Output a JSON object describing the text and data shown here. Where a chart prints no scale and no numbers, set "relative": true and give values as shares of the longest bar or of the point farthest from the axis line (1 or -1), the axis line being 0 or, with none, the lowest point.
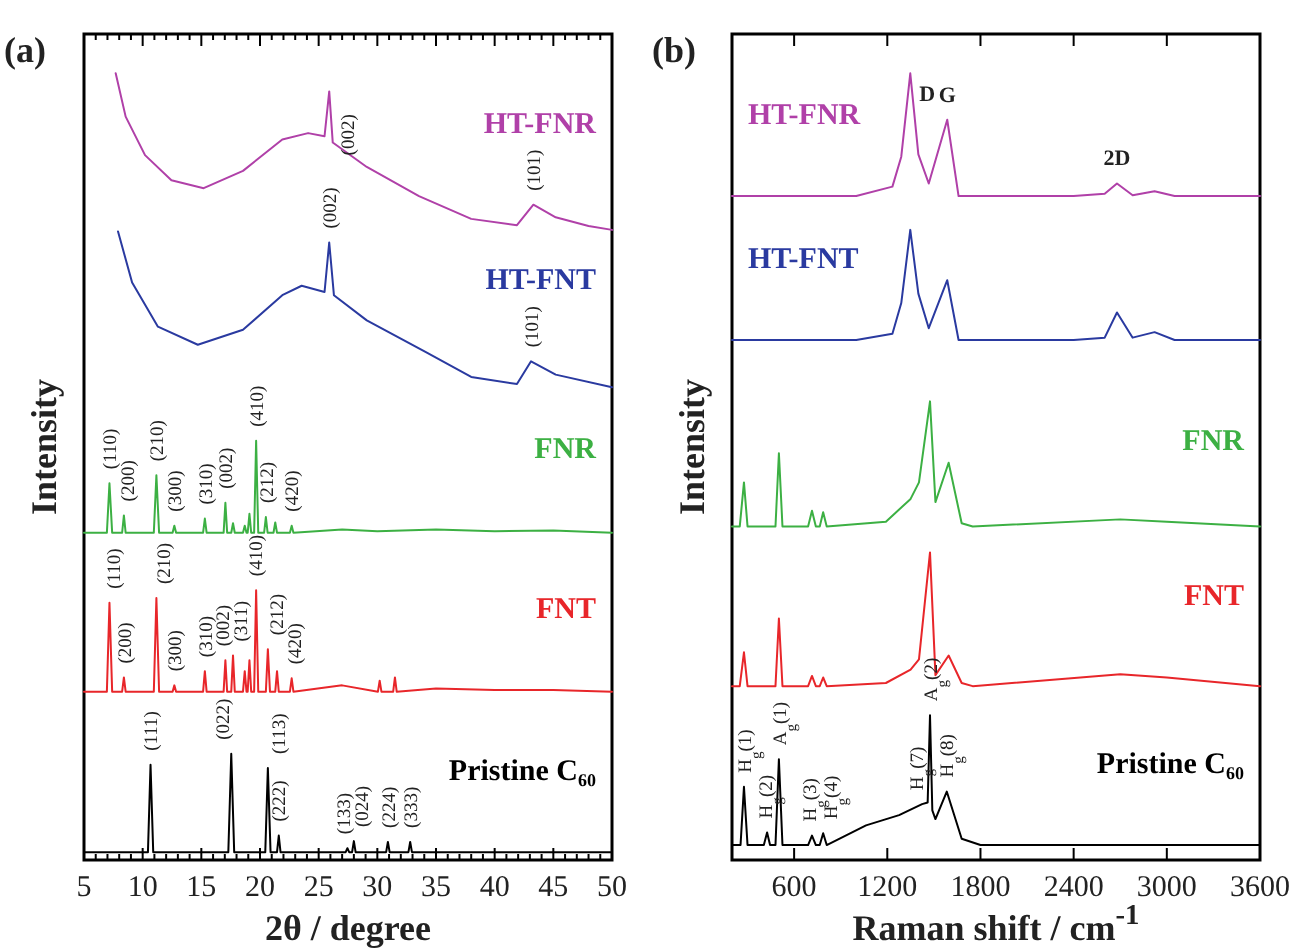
{
  "chart_data": [
    {
      "type": "line",
      "relative": true,
      "xlabel": "2θ / degree",
      "ylabel": "Intensity",
      "xlim": [
        5,
        50
      ],
      "xticks": [
        5,
        {
          "value": 6,
          "label": null
        },
        {
          "value": 7,
          "label": null
        },
        {
          "value": 8,
          "label": null
        },
        {
          "value": 9,
          "label": null
        },
        10,
        {
          "value": 11,
          "label": null
        },
        {
          "value": 12,
          "label": null
        },
        {
          "value": 13,
          "label": null
        },
        {
          "value": 14,
          "label": null
        },
        15,
        {
          "value": 16,
          "label": null
        },
        {
          "value": 17,
          "label": null
        },
        {
          "value": 18,
          "label": null
        },
        {
          "value": 19,
          "label": null
        },
        20,
        {
          "value": 21,
          "label": null
        },
        {
          "value": 22,
          "label": null
        },
        {
          "value": 23,
          "label": null
        },
        {
          "value": 24,
          "label": null
        },
        25,
        {
          "value": 26,
          "label": null
        },
        {
          "value": 27,
          "label": null
        },
        {
          "value": 28,
          "label": null
        },
        {
          "value": 29,
          "label": null
        },
        30,
        {
          "value": 31,
          "label": null
        },
        {
          "value": 32,
          "label": null
        },
        {
          "value": 33,
          "label": null
        },
        {
          "value": 34,
          "label": null
        },
        35,
        {
          "value": 36,
          "label": null
        },
        {
          "value": 37,
          "label": null
        },
        {
          "value": 38,
          "label": null
        },
        {
          "value": 39,
          "label": null
        },
        40,
        {
          "value": 41,
          "label": null
        },
        {
          "value": 42,
          "label": null
        },
        {
          "value": 43,
          "label": null
        },
        {
          "value": 44,
          "label": null
        },
        45,
        {
          "value": 46,
          "label": null
        },
        {
          "value": 47,
          "label": null
        },
        {
          "value": 48,
          "label": null
        },
        {
          "value": 49,
          "label": null
        },
        50
      ],
      "series": [
        {
          "name": "HT-FNR",
          "color": "#b040a8",
          "x": [
            7.7,
            8.55,
            10.2,
            12.45,
            15.2,
            18.55,
            21.9,
            24.1,
            25.5,
            25.9,
            26.2,
            29.1,
            33.55,
            38.0,
            41.9,
            43.3,
            45.2,
            48.0,
            50.0
          ],
          "values": [
            1.0,
            0.945,
            0.896,
            0.864,
            0.854,
            0.876,
            0.916,
            0.924,
            0.92,
            0.977,
            0.912,
            0.881,
            0.844,
            0.815,
            0.807,
            0.833,
            0.817,
            0.806,
            0.801
          ]
        },
        {
          "name": "HT-FNT",
          "color": "#2a3aa0",
          "x": [
            7.9,
            9.1,
            11.3,
            14.7,
            18.55,
            21.9,
            23.55,
            25.5,
            25.9,
            26.3,
            29.1,
            34.1,
            38.0,
            41.9,
            43.1,
            45.2,
            50.0
          ],
          "values": [
            0.799,
            0.734,
            0.678,
            0.655,
            0.674,
            0.718,
            0.73,
            0.722,
            0.785,
            0.718,
            0.686,
            0.646,
            0.614,
            0.605,
            0.634,
            0.617,
            0.601
          ]
        },
        {
          "name": "FNR",
          "color": "#3cb043",
          "x": [
            5,
            6.95,
            7.17,
            7.4,
            8.25,
            8.4,
            8.55,
            10.95,
            11.17,
            11.4,
            12.55,
            12.7,
            12.85,
            15.15,
            15.3,
            15.45,
            16.9,
            17.05,
            17.2,
            17.55,
            17.7,
            17.85,
            18.55,
            18.7,
            18.85,
            18.95,
            19.1,
            19.25,
            19.5,
            19.67,
            19.85,
            20.35,
            20.5,
            20.65,
            21.15,
            21.3,
            21.45,
            22.55,
            22.7,
            22.85,
            27,
            30,
            35,
            40,
            45,
            50
          ],
          "values": [
            0.416,
            0.416,
            0.479,
            0.416,
            0.416,
            0.438,
            0.416,
            0.416,
            0.489,
            0.416,
            0.416,
            0.425,
            0.416,
            0.416,
            0.434,
            0.416,
            0.416,
            0.454,
            0.416,
            0.416,
            0.428,
            0.416,
            0.416,
            0.425,
            0.416,
            0.416,
            0.44,
            0.416,
            0.416,
            0.533,
            0.416,
            0.416,
            0.436,
            0.416,
            0.416,
            0.429,
            0.416,
            0.416,
            0.425,
            0.416,
            0.42,
            0.418,
            0.42,
            0.418,
            0.419,
            0.416
          ]
        },
        {
          "name": "FNT",
          "color": "#e8262a",
          "x": [
            5,
            6.95,
            7.17,
            7.4,
            8.25,
            8.4,
            8.55,
            10.95,
            11.17,
            11.4,
            12.55,
            12.7,
            12.85,
            15.15,
            15.3,
            15.45,
            16.9,
            17.05,
            17.2,
            17.55,
            17.7,
            17.85,
            18.55,
            18.7,
            18.85,
            18.95,
            19.1,
            19.25,
            19.5,
            19.67,
            19.85,
            20.5,
            20.67,
            20.85,
            21.3,
            21.45,
            21.6,
            22.55,
            22.7,
            22.85,
            27,
            30.05,
            30.2,
            30.35,
            31.35,
            31.5,
            31.65,
            35,
            40,
            45,
            50
          ],
          "values": [
            0.214,
            0.214,
            0.327,
            0.214,
            0.214,
            0.232,
            0.214,
            0.214,
            0.333,
            0.214,
            0.214,
            0.222,
            0.214,
            0.214,
            0.24,
            0.214,
            0.214,
            0.254,
            0.214,
            0.214,
            0.26,
            0.214,
            0.214,
            0.24,
            0.214,
            0.214,
            0.254,
            0.214,
            0.214,
            0.343,
            0.214,
            0.214,
            0.268,
            0.214,
            0.214,
            0.24,
            0.214,
            0.214,
            0.231,
            0.214,
            0.222,
            0.214,
            0.228,
            0.214,
            0.214,
            0.232,
            0.214,
            0.218,
            0.216,
            0.216,
            0.214
          ]
        },
        {
          "name": "Pristine C₆₀",
          "color": "#000000",
          "x": [
            5,
            10.45,
            10.67,
            10.9,
            17.3,
            17.55,
            17.8,
            20.45,
            20.67,
            20.9,
            21.45,
            21.6,
            21.75,
            27.3,
            27.45,
            27.6,
            27.85,
            28.0,
            28.15,
            30.75,
            30.9,
            31.05,
            32.65,
            32.8,
            32.95,
            50
          ],
          "values": [
            0.01,
            0.01,
            0.121,
            0.01,
            0.01,
            0.135,
            0.01,
            0.01,
            0.117,
            0.01,
            0.01,
            0.031,
            0.01,
            0.01,
            0.015,
            0.01,
            0.01,
            0.024,
            0.01,
            0.01,
            0.023,
            0.01,
            0.01,
            0.023,
            0.01,
            0.01
          ]
        }
      ],
      "annotations": [
        "(a)",
        {
          "text": "(002)",
          "x": 25.9,
          "y": 0.977
        },
        {
          "text": "(101)",
          "x": 43.3,
          "y": 0.833
        },
        {
          "text": "(002)",
          "x": 25.9,
          "y": 0.785
        },
        {
          "text": "(101)",
          "x": 43.1,
          "y": 0.634
        },
        {
          "text": "(110)",
          "x": 7.17,
          "y": 0.479
        },
        {
          "text": "(200)",
          "x": 8.4,
          "y": 0.438
        },
        {
          "text": "(210)",
          "x": 11.17,
          "y": 0.489
        },
        {
          "text": "(300)",
          "x": 12.7,
          "y": 0.425
        },
        {
          "text": "(310)",
          "x": 15.3,
          "y": 0.434
        },
        {
          "text": "(002)",
          "x": 17.05,
          "y": 0.454
        },
        {
          "text": "(410)",
          "x": 19.67,
          "y": 0.533
        },
        {
          "text": "(212)",
          "x": 20.5,
          "y": 0.436
        },
        {
          "text": "(420)",
          "x": 22.7,
          "y": 0.425
        },
        {
          "text": "(110)",
          "x": 7.17,
          "y": 0.327
        },
        {
          "text": "(200)",
          "x": 8.4,
          "y": 0.232
        },
        {
          "text": "(210)",
          "x": 11.17,
          "y": 0.333
        },
        {
          "text": "(300)",
          "x": 12.7,
          "y": 0.222
        },
        {
          "text": "(310)",
          "x": 15.3,
          "y": 0.24
        },
        {
          "text": "(002)",
          "x": 17.05,
          "y": 0.254
        },
        {
          "text": "(311)",
          "x": 17.7,
          "y": 0.26
        },
        {
          "text": "(410)",
          "x": 19.67,
          "y": 0.343
        },
        {
          "text": "(212)",
          "x": 20.67,
          "y": 0.268
        },
        {
          "text": "(420)",
          "x": 22.7,
          "y": 0.231
        },
        {
          "text": "(111)",
          "x": 10.67,
          "y": 0.121
        },
        {
          "text": "(022)",
          "x": 17.55,
          "y": 0.135
        },
        {
          "text": "(113)",
          "x": 20.67,
          "y": 0.117
        },
        {
          "text": "(222)",
          "x": 21.6,
          "y": 0.031
        },
        {
          "text": "(133)",
          "x": 27.45,
          "y": 0.015
        },
        {
          "text": "(024)",
          "x": 28.0,
          "y": 0.024
        },
        {
          "text": "(224)",
          "x": 30.9,
          "y": 0.023
        },
        {
          "text": "(333)",
          "x": 32.8,
          "y": 0.023
        }
      ]
    },
    {
      "type": "line",
      "relative": true,
      "xlabel": "Raman shift / cm$^{-1}$",
      "ylabel": "Intensity",
      "xlim": [
        200,
        3600
      ],
      "xticks": [
        600,
        1200,
        1800,
        2400,
        3000,
        3600
      ],
      "series": [
        {
          "name": "HT-FNR",
          "color": "#b040a8",
          "x": [
            200,
            1000,
            1233,
            1290,
            1348,
            1400,
            1467,
            1586,
            1659,
            2400,
            2600,
            2679,
            2780,
            2921,
            3050,
            3600
          ],
          "values": [
            0.844,
            0.844,
            0.856,
            0.894,
            1.0,
            0.897,
            0.86,
            0.941,
            0.844,
            0.844,
            0.847,
            0.86,
            0.845,
            0.85,
            0.844,
            0.844
          ]
        },
        {
          "name": "HT-FNT",
          "color": "#2a3aa0",
          "x": [
            200,
            1000,
            1233,
            1290,
            1348,
            1400,
            1467,
            1586,
            1659,
            2400,
            2600,
            2679,
            2780,
            2921,
            3050,
            3600
          ],
          "values": [
            0.661,
            0.661,
            0.669,
            0.708,
            0.801,
            0.72,
            0.676,
            0.737,
            0.661,
            0.661,
            0.664,
            0.696,
            0.664,
            0.671,
            0.661,
            0.661
          ]
        },
        {
          "name": "FNR",
          "color": "#3cb043",
          "x": [
            200,
            250,
            277,
            300,
            480,
            502,
            525,
            690,
            715,
            740,
            765,
            787,
            810,
            1191,
            1350,
            1404,
            1475,
            1510,
            1595,
            1679,
            1750,
            2700,
            3000,
            3600
          ],
          "values": [
            0.424,
            0.424,
            0.48,
            0.424,
            0.424,
            0.517,
            0.424,
            0.424,
            0.444,
            0.424,
            0.424,
            0.442,
            0.424,
            0.43,
            0.459,
            0.48,
            0.583,
            0.455,
            0.505,
            0.428,
            0.424,
            0.433,
            0.43,
            0.424
          ]
        },
        {
          "name": "FNT",
          "color": "#e8262a",
          "x": [
            200,
            250,
            277,
            300,
            480,
            502,
            525,
            690,
            715,
            740,
            765,
            787,
            810,
            1191,
            1350,
            1404,
            1475,
            1510,
            1595,
            1679,
            1750,
            2700,
            3000,
            3600
          ],
          "values": [
            0.221,
            0.221,
            0.264,
            0.221,
            0.221,
            0.307,
            0.221,
            0.221,
            0.234,
            0.221,
            0.221,
            0.232,
            0.221,
            0.225,
            0.242,
            0.255,
            0.391,
            0.235,
            0.26,
            0.225,
            0.221,
            0.236,
            0.232,
            0.221
          ]
        },
        {
          "name": "Pristine C₆₀",
          "color": "#000000",
          "x": [
            200,
            255,
            277,
            300,
            405,
            426,
            445,
            480,
            502,
            525,
            690,
            715,
            740,
            765,
            787,
            810,
            1063,
            1276,
            1424,
            1460,
            1475,
            1490,
            1510,
            1583,
            1679,
            1800,
            3600
          ],
          "values": [
            0.019,
            0.019,
            0.093,
            0.019,
            0.019,
            0.035,
            0.019,
            0.019,
            0.128,
            0.019,
            0.019,
            0.031,
            0.019,
            0.019,
            0.034,
            0.019,
            0.044,
            0.057,
            0.071,
            0.073,
            0.184,
            0.063,
            0.052,
            0.087,
            0.027,
            0.019,
            0.019
          ]
        }
      ],
      "annotations": [
        "(b)",
        {
          "text": "D",
          "x": 1348,
          "y": 1.0
        },
        {
          "text": "G",
          "x": 1586,
          "y": 0.941
        },
        {
          "text": "2D",
          "x": 2679,
          "y": 0.86
        },
        {
          "text": "H$_{g}$(1)",
          "x": 277,
          "y": 0.093
        },
        {
          "text": "H$_{g}$(2)",
          "x": 426,
          "y": 0.035
        },
        {
          "text": "A$_{g}$(1)",
          "x": 502,
          "y": 0.128
        },
        {
          "text": "H$_{g}$(3)",
          "x": 715,
          "y": 0.031
        },
        {
          "text": "H$_{g}$(4)",
          "x": 787,
          "y": 0.034
        },
        {
          "text": "H$_{g}$(7)",
          "x": 1424,
          "y": 0.071
        },
        {
          "text": "A$_{g}$(2)",
          "x": 1475,
          "y": 0.184
        },
        {
          "text": "H$_{g}$(8)",
          "x": 1583,
          "y": 0.087
        }
      ]
    }
  ]
}
